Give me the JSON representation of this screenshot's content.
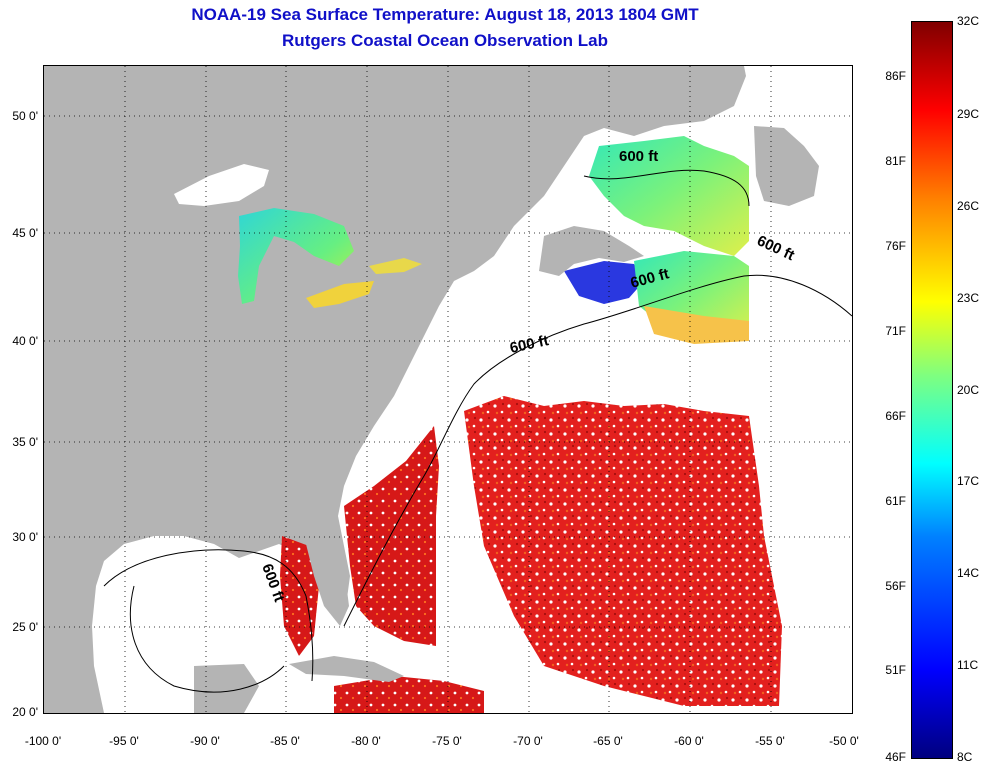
{
  "title_line1": "NOAA-19 Sea Surface Temperature:  August 18, 2013 1804 GMT",
  "title_line2": "Rutgers Coastal Ocean Observation Lab",
  "map": {
    "lon_range": [
      -100,
      -50
    ],
    "lat_range": [
      20,
      52.5
    ],
    "x_ticks": [
      "-100 0'",
      "-95 0'",
      "-90 0'",
      "-85 0'",
      "-80 0'",
      "-75 0'",
      "-70 0'",
      "-65 0'",
      "-60 0'",
      "-55 0'",
      "-50 0'"
    ],
    "y_ticks": [
      "50 0'",
      "45 0'",
      "40 0'",
      "35 0'",
      "30 0'",
      "25 0'",
      "20 0'"
    ],
    "contour_label": "600 ft",
    "land_color": "#b4b4b4",
    "no_data_color": "#ffffff",
    "grid": "dotted"
  },
  "colorbar": {
    "fahrenheit_labels": [
      "86F",
      "81F",
      "76F",
      "71F",
      "66F",
      "61F",
      "56F",
      "51F",
      "46F"
    ],
    "celsius_labels": [
      "32C",
      "29C",
      "26C",
      "23C",
      "20C",
      "17C",
      "14C",
      "11C",
      "8C"
    ],
    "celsius_range": [
      8,
      32
    ],
    "colors": [
      "#00007f",
      "#0000ff",
      "#0080ff",
      "#00ffff",
      "#7fff7f",
      "#ffff00",
      "#ff8000",
      "#ff0000",
      "#800000"
    ]
  }
}
